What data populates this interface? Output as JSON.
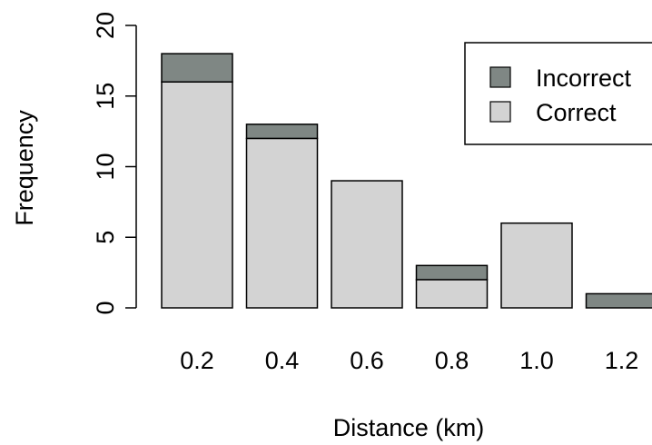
{
  "chart_data": {
    "type": "bar",
    "stacked": true,
    "title": "",
    "xlabel": "Distance (km)",
    "ylabel": "Frequency",
    "ylim": [
      0,
      20
    ],
    "yticks": [
      0,
      5,
      10,
      15,
      20
    ],
    "categories": [
      "0.2",
      "0.4",
      "0.6",
      "0.8",
      "1.0",
      "1.2"
    ],
    "series": [
      {
        "name": "Correct",
        "values": [
          16,
          12,
          9,
          2,
          6,
          0
        ],
        "color": "#d3d3d3"
      },
      {
        "name": "Incorrect",
        "values": [
          2,
          1,
          0,
          1,
          0,
          1
        ],
        "color": "#7f8784"
      }
    ],
    "legend": {
      "position": "top-right",
      "entries": [
        "Incorrect",
        "Correct"
      ]
    },
    "grid": false
  }
}
